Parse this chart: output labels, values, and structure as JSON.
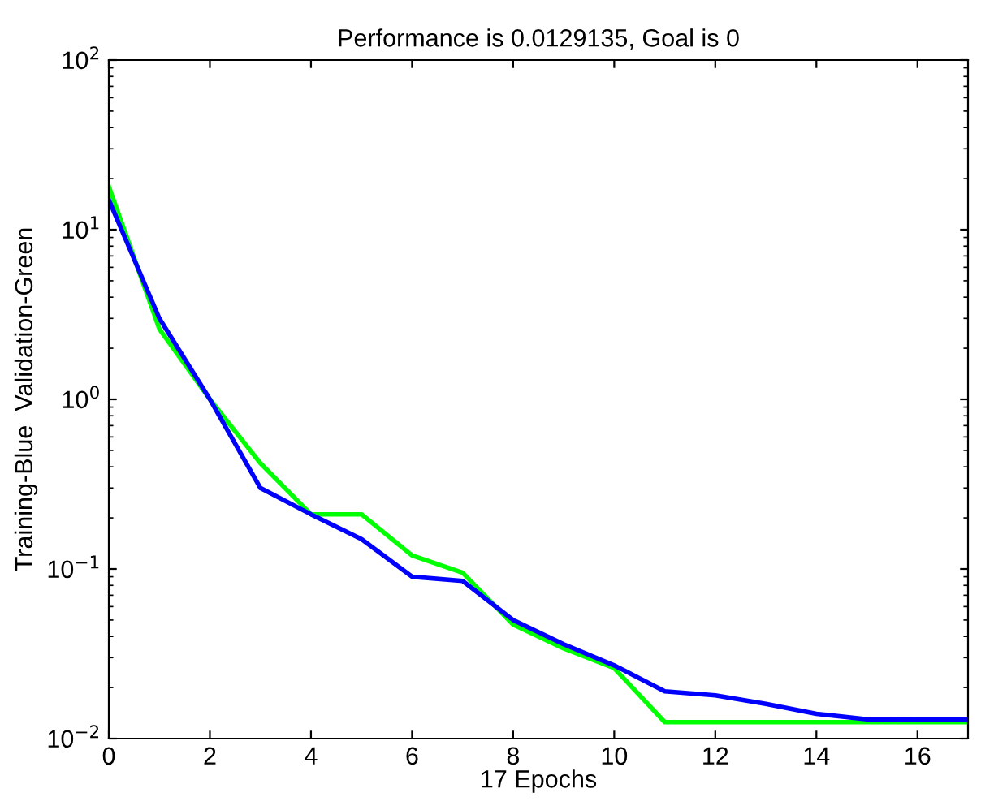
{
  "chart_data": {
    "type": "line",
    "title": "Performance is 0.0129135, Goal is 0",
    "xlabel": "17 Epochs",
    "ylabel": "Training-Blue  Validation-Green",
    "x": [
      0,
      1,
      2,
      3,
      4,
      5,
      6,
      7,
      8,
      9,
      10,
      11,
      12,
      13,
      14,
      15,
      16,
      17
    ],
    "series": [
      {
        "color": "#00ff00",
        "values": [
          18,
          2.6,
          1.0,
          0.42,
          0.21,
          0.21,
          0.12,
          0.095,
          0.047,
          0.034,
          0.026,
          0.0125,
          0.0125,
          0.0125,
          0.0125,
          0.0125,
          0.0125,
          0.0125
        ]
      },
      {
        "color": "#0000ff",
        "values": [
          15,
          3.0,
          1.0,
          0.3,
          0.21,
          0.15,
          0.09,
          0.085,
          0.05,
          0.036,
          0.027,
          0.019,
          0.018,
          0.016,
          0.014,
          0.013,
          0.0129,
          0.0129
        ]
      }
    ],
    "log": "y",
    "xlim": [
      0,
      17
    ],
    "ylim": [
      0.01,
      100
    ],
    "xticks": [
      0,
      2,
      4,
      6,
      8,
      10,
      12,
      14,
      16
    ],
    "yticks": [
      {
        "value": 0.01,
        "label": "10$^{−2}$"
      },
      {
        "value": 0.1,
        "label": "10$^{−1}$"
      },
      {
        "value": 1,
        "label": "10$^{0}$"
      },
      {
        "value": 10,
        "label": "10$^{1}$"
      },
      {
        "value": 100,
        "label": "10$^{2}$"
      }
    ],
    "grid": false,
    "legend": false,
    "marker": "none",
    "line_style": "solid"
  }
}
